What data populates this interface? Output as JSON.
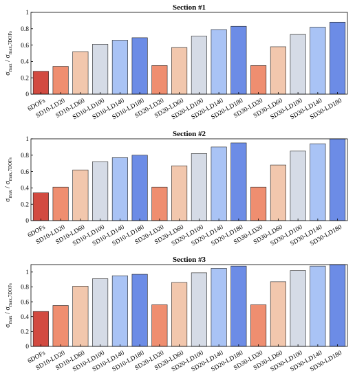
{
  "chart_data": [
    {
      "type": "bar",
      "title": "Section #1",
      "ylabel": "σmax / σmax,7DOFs",
      "ylim": [
        0,
        1
      ],
      "yticks": [
        0,
        0.2,
        0.4,
        0.6,
        0.8,
        1
      ],
      "categories": [
        "6DOFs",
        "SD10-LD20",
        "SD10-LD60",
        "SD10-LD100",
        "SD10-LD140",
        "SD10-LD180",
        "SD20-LD20",
        "SD20-LD60",
        "SD20-LD100",
        "SD20-LD140",
        "SD20-LD180",
        "SD30-LD20",
        "SD30-LD60",
        "SD30-LD100",
        "SD30-LD140",
        "SD30-LD180"
      ],
      "values": [
        0.28,
        0.34,
        0.52,
        0.61,
        0.66,
        0.69,
        0.35,
        0.57,
        0.71,
        0.79,
        0.83,
        0.35,
        0.58,
        0.73,
        0.82,
        0.88
      ]
    },
    {
      "type": "bar",
      "title": "Section #2",
      "ylabel": "σmax / σmax,7DOFs",
      "ylim": [
        0,
        1
      ],
      "yticks": [
        0,
        0.2,
        0.4,
        0.6,
        0.8,
        1
      ],
      "categories": [
        "6DOFs",
        "SD10-LD20",
        "SD10-LD60",
        "SD10-LD100",
        "SD10-LD140",
        "SD10-LD180",
        "SD20-LD20",
        "SD20-LD60",
        "SD20-LD100",
        "SD20-LD140",
        "SD20-LD180",
        "SD30-LD20",
        "SD30-LD60",
        "SD30-LD100",
        "SD30-LD140",
        "SD30-LD180"
      ],
      "values": [
        0.34,
        0.41,
        0.62,
        0.72,
        0.77,
        0.8,
        0.41,
        0.67,
        0.82,
        0.9,
        0.95,
        0.41,
        0.68,
        0.85,
        0.94,
        1.0
      ]
    },
    {
      "type": "bar",
      "title": "Section #3",
      "ylabel": "σmax / σmax,7DOFs",
      "ylim": [
        0,
        1.1
      ],
      "yticks": [
        0,
        0.2,
        0.4,
        0.6,
        0.8,
        1
      ],
      "categories": [
        "6DOFs",
        "SD10-LD20",
        "SD10-LD60",
        "SD10-LD100",
        "SD10-LD140",
        "SD10-LD180",
        "SD20-LD20",
        "SD20-LD60",
        "SD20-LD100",
        "SD20-LD140",
        "SD20-LD180",
        "SD30-LD20",
        "SD30-LD60",
        "SD30-LD100",
        "SD30-LD140",
        "SD30-LD180"
      ],
      "values": [
        0.47,
        0.55,
        0.81,
        0.91,
        0.95,
        0.97,
        0.56,
        0.86,
        0.99,
        1.05,
        1.08,
        0.56,
        0.87,
        1.02,
        1.08,
        1.12
      ]
    }
  ],
  "colors": [
    "#d24a40",
    "#ef8e70",
    "#f2c7ad",
    "#d5dbe6",
    "#a9c3f5",
    "#6c8ce6",
    "#ef8e70",
    "#f2c7ad",
    "#d5dbe6",
    "#a9c3f5",
    "#6c8ce6",
    "#ef8e70",
    "#f2c7ad",
    "#d5dbe6",
    "#a9c3f5",
    "#6c8ce6"
  ],
  "ylabel_parts": {
    "sigma": "σ",
    "sub1": "max",
    "slash": " / σ",
    "sub2": "max,7DOFs"
  }
}
